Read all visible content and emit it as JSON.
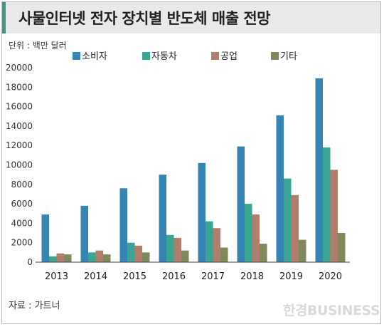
{
  "title": "사물인터넷 전자 장치별 반도체 매출 전망",
  "unit_label": "단위 : 백만 달러",
  "source_label": "자료 : 가트너",
  "watermark": "한경BUSINESS",
  "chart_data": {
    "type": "bar",
    "title": "사물인터넷 전자 장치별 반도체 매출 전망",
    "ylabel": "",
    "xlabel": "",
    "ylim": [
      0,
      20000
    ],
    "yticks": [
      0,
      2000,
      4000,
      6000,
      8000,
      10000,
      12000,
      14000,
      16000,
      18000,
      20000
    ],
    "grid": false,
    "legend_position": "top",
    "categories": [
      "2013",
      "2014",
      "2015",
      "2016",
      "2017",
      "2018",
      "2019",
      "2020"
    ],
    "series": [
      {
        "name": "소비자",
        "color": "#3585b4",
        "values": [
          4900,
          5800,
          7600,
          9000,
          10200,
          11900,
          15100,
          18900
        ]
      },
      {
        "name": "자동차",
        "color": "#3aa592",
        "values": [
          600,
          1000,
          2000,
          2800,
          4200,
          6000,
          8600,
          11800
        ]
      },
      {
        "name": "공업",
        "color": "#b27e6b",
        "values": [
          900,
          1200,
          1700,
          2500,
          3500,
          4900,
          6900,
          9500
        ]
      },
      {
        "name": "기타",
        "color": "#7e8a5c",
        "values": [
          800,
          800,
          1000,
          1200,
          1500,
          1900,
          2300,
          3000
        ]
      }
    ]
  }
}
